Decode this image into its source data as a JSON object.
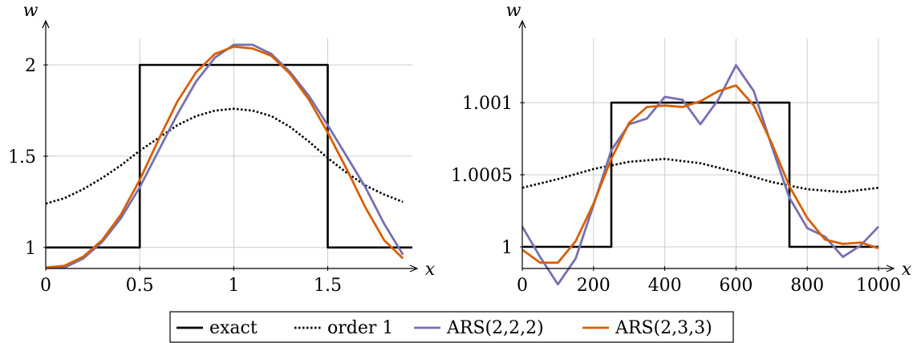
{
  "chart_data": [
    {
      "type": "line",
      "xlabel": "x",
      "ylabel": "w",
      "xlim": [
        0,
        1.95
      ],
      "ylim": [
        0.885,
        2.18
      ],
      "xticks": [
        0,
        0.5,
        1,
        1.5
      ],
      "xtick_labels": [
        "0",
        "0.5",
        "1",
        "1.5"
      ],
      "yticks": [
        1,
        1.5,
        2
      ],
      "ytick_labels": [
        "1",
        "1.5",
        "2"
      ],
      "grid": true,
      "series": [
        {
          "name": "exact",
          "color": "#000000",
          "style": "solid",
          "x": [
            0,
            0.5,
            0.5,
            1.5,
            1.5,
            1.95
          ],
          "y": [
            1,
            1,
            2,
            2,
            1,
            1
          ]
        },
        {
          "name": "order 1",
          "color": "#000000",
          "style": "dotted",
          "x": [
            0,
            0.1,
            0.2,
            0.3,
            0.4,
            0.5,
            0.6,
            0.7,
            0.8,
            0.9,
            1.0,
            1.1,
            1.2,
            1.3,
            1.4,
            1.5,
            1.6,
            1.7,
            1.8,
            1.9
          ],
          "y": [
            1.24,
            1.27,
            1.32,
            1.38,
            1.45,
            1.53,
            1.6,
            1.67,
            1.72,
            1.75,
            1.76,
            1.75,
            1.72,
            1.66,
            1.58,
            1.49,
            1.41,
            1.34,
            1.29,
            1.25
          ]
        },
        {
          "name": "ARS(2,2,2)",
          "color": "#7570b3",
          "style": "solid",
          "x": [
            0,
            0.1,
            0.2,
            0.3,
            0.4,
            0.5,
            0.6,
            0.7,
            0.8,
            0.9,
            1.0,
            1.1,
            1.2,
            1.3,
            1.4,
            1.5,
            1.6,
            1.7,
            1.8,
            1.9
          ],
          "y": [
            0.89,
            0.89,
            0.94,
            1.03,
            1.16,
            1.33,
            1.53,
            1.73,
            1.91,
            2.04,
            2.11,
            2.11,
            2.06,
            1.96,
            1.83,
            1.67,
            1.5,
            1.33,
            1.13,
            0.96
          ]
        },
        {
          "name": "ARS(2,3,3)",
          "color": "#d95f02",
          "style": "solid",
          "x": [
            0,
            0.1,
            0.2,
            0.3,
            0.4,
            0.5,
            0.6,
            0.7,
            0.8,
            0.9,
            1.0,
            1.1,
            1.2,
            1.3,
            1.4,
            1.5,
            1.6,
            1.7,
            1.8,
            1.9
          ],
          "y": [
            0.89,
            0.9,
            0.95,
            1.04,
            1.18,
            1.37,
            1.59,
            1.8,
            1.96,
            2.06,
            2.1,
            2.09,
            2.05,
            1.95,
            1.81,
            1.63,
            1.43,
            1.22,
            1.04,
            0.94
          ]
        }
      ]
    },
    {
      "type": "line",
      "xlabel": "x",
      "ylabel": "w",
      "xlim": [
        0,
        1000
      ],
      "ylim": [
        0.99985,
        1.00149
      ],
      "xticks": [
        0,
        200,
        400,
        600,
        800,
        1000
      ],
      "xtick_labels": [
        "0",
        "200",
        "400",
        "600",
        "800",
        "1000"
      ],
      "yticks": [
        1,
        1.0005,
        1.001
      ],
      "ytick_labels": [
        "1",
        "1.0005",
        "1.001"
      ],
      "grid": true,
      "series": [
        {
          "name": "exact",
          "color": "#000000",
          "style": "solid",
          "x": [
            0,
            250,
            250,
            750,
            750,
            1000
          ],
          "y": [
            1,
            1,
            1.001,
            1.001,
            1,
            1
          ]
        },
        {
          "name": "order 1",
          "color": "#000000",
          "style": "dotted",
          "x": [
            0,
            100,
            200,
            300,
            400,
            500,
            600,
            700,
            800,
            900,
            1000
          ],
          "y": [
            1.00041,
            1.00047,
            1.00054,
            1.00059,
            1.00061,
            1.00058,
            1.00052,
            1.00045,
            1.0004,
            1.00038,
            1.00041
          ]
        },
        {
          "name": "ARS(2,2,2)",
          "color": "#7570b3",
          "style": "solid",
          "x": [
            0,
            50,
            100,
            150,
            200,
            250,
            300,
            350,
            400,
            450,
            500,
            550,
            600,
            650,
            700,
            750,
            800,
            850,
            900,
            950,
            1000
          ],
          "y": [
            1.00014,
            0.99993,
            0.99974,
            0.99992,
            1.00029,
            1.00067,
            1.00085,
            1.00089,
            1.00104,
            1.00102,
            1.00085,
            1.00102,
            1.00126,
            1.00108,
            1.0007,
            1.00034,
            1.00013,
            1.00007,
            0.99993,
            1.00001,
            1.00014
          ]
        },
        {
          "name": "ARS(2,3,3)",
          "color": "#d95f02",
          "style": "solid",
          "x": [
            0,
            50,
            100,
            150,
            200,
            250,
            300,
            350,
            400,
            450,
            500,
            550,
            600,
            650,
            700,
            750,
            800,
            850,
            900,
            950,
            1000
          ],
          "y": [
            0.99998,
            0.99989,
            0.99989,
            1.00004,
            1.0003,
            1.00061,
            1.00086,
            1.00097,
            1.00098,
            1.00097,
            1.00101,
            1.00108,
            1.00112,
            1.00098,
            1.00072,
            1.00042,
            1.0002,
            1.00005,
            1.00002,
            1.00003,
            0.99999
          ]
        }
      ]
    }
  ],
  "legend": {
    "placement": "bottom",
    "entries": [
      {
        "label": "exact",
        "color": "#000000",
        "style": "solid"
      },
      {
        "label": "order 1",
        "color": "#000000",
        "style": "dotted"
      },
      {
        "label": "ARS(2,2,2)",
        "color": "#7570b3",
        "style": "solid"
      },
      {
        "label": "ARS(2,3,3)",
        "color": "#d95f02",
        "style": "solid"
      }
    ]
  }
}
